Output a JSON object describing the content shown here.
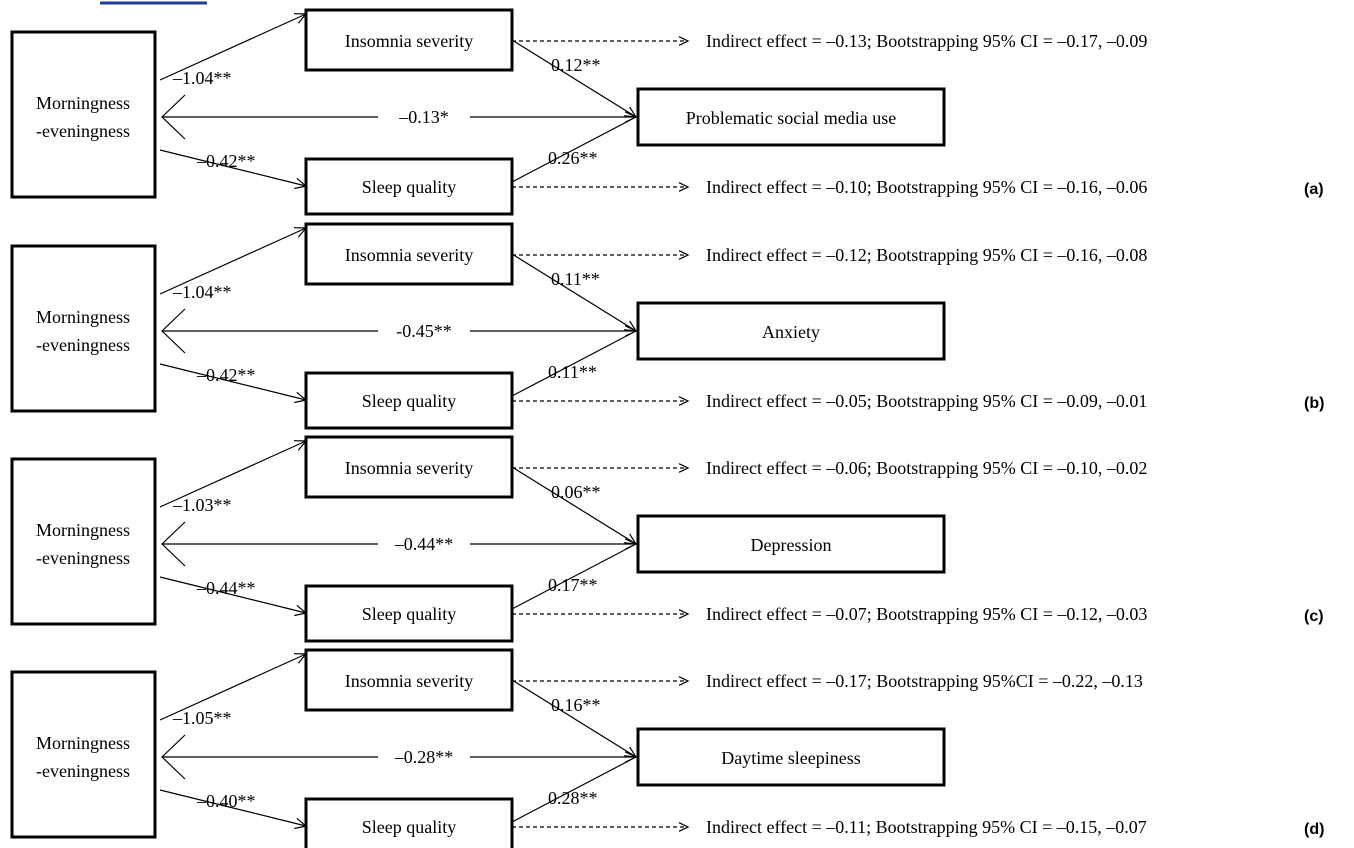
{
  "panels": [
    {
      "panel_label": "(a)",
      "predictor": [
        "Morningness",
        "-eveningness"
      ],
      "mediator_top": "Insomnia severity",
      "mediator_bottom": "Sleep quality",
      "outcome": "Problematic social media use",
      "path_a_top": "–1.04**",
      "path_b_top": "0.12**",
      "path_direct": "–0.13*",
      "path_a_bottom": "–0.42**",
      "path_b_bottom": "0.26**",
      "indirect_top": "Indirect effect = –0.13; Bootstrapping 95% CI = –0.17, –0.09",
      "indirect_bottom": "Indirect effect = –0.10; Bootstrapping 95% CI = –0.16, –0.06"
    },
    {
      "panel_label": "(b)",
      "predictor": [
        "Morningness",
        "-eveningness"
      ],
      "mediator_top": "Insomnia severity",
      "mediator_bottom": "Sleep quality",
      "outcome": "Anxiety",
      "path_a_top": "–1.04**",
      "path_b_top": "0.11**",
      "path_direct": "-0.45**",
      "path_a_bottom": "–0.42**",
      "path_b_bottom": "0.11**",
      "indirect_top": "Indirect effect = –0.12; Bootstrapping 95% CI = –0.16, –0.08",
      "indirect_bottom": "Indirect effect = –0.05; Bootstrapping 95% CI = –0.09, –0.01"
    },
    {
      "panel_label": "(c)",
      "predictor": [
        "Morningness",
        "-eveningness"
      ],
      "mediator_top": "Insomnia severity",
      "mediator_bottom": "Sleep quality",
      "outcome": "Depression",
      "path_a_top": "–1.03**",
      "path_b_top": "0.06**",
      "path_direct": "–0.44**",
      "path_a_bottom": "–0.44**",
      "path_b_bottom": "0.17**",
      "indirect_top": "Indirect effect = –0.06; Bootstrapping 95% CI = –0.10, –0.02",
      "indirect_bottom": "Indirect effect = –0.07; Bootstrapping 95% CI = –0.12, –0.03"
    },
    {
      "panel_label": "(d)",
      "predictor": [
        "Morningness",
        "-eveningness"
      ],
      "mediator_top": "Insomnia severity",
      "mediator_bottom": "Sleep quality",
      "outcome": "Daytime sleepiness",
      "path_a_top": "–1.05**",
      "path_b_top": "0.16**",
      "path_direct": "–0.28**",
      "path_a_bottom": "–0.40**",
      "path_b_bottom": "0.28**",
      "indirect_top": "Indirect effect = –0.17; Bootstrapping 95%CI = –0.22, –0.13",
      "indirect_bottom": "Indirect effect = –0.11; Bootstrapping 95% CI = –0.15, –0.07"
    }
  ]
}
